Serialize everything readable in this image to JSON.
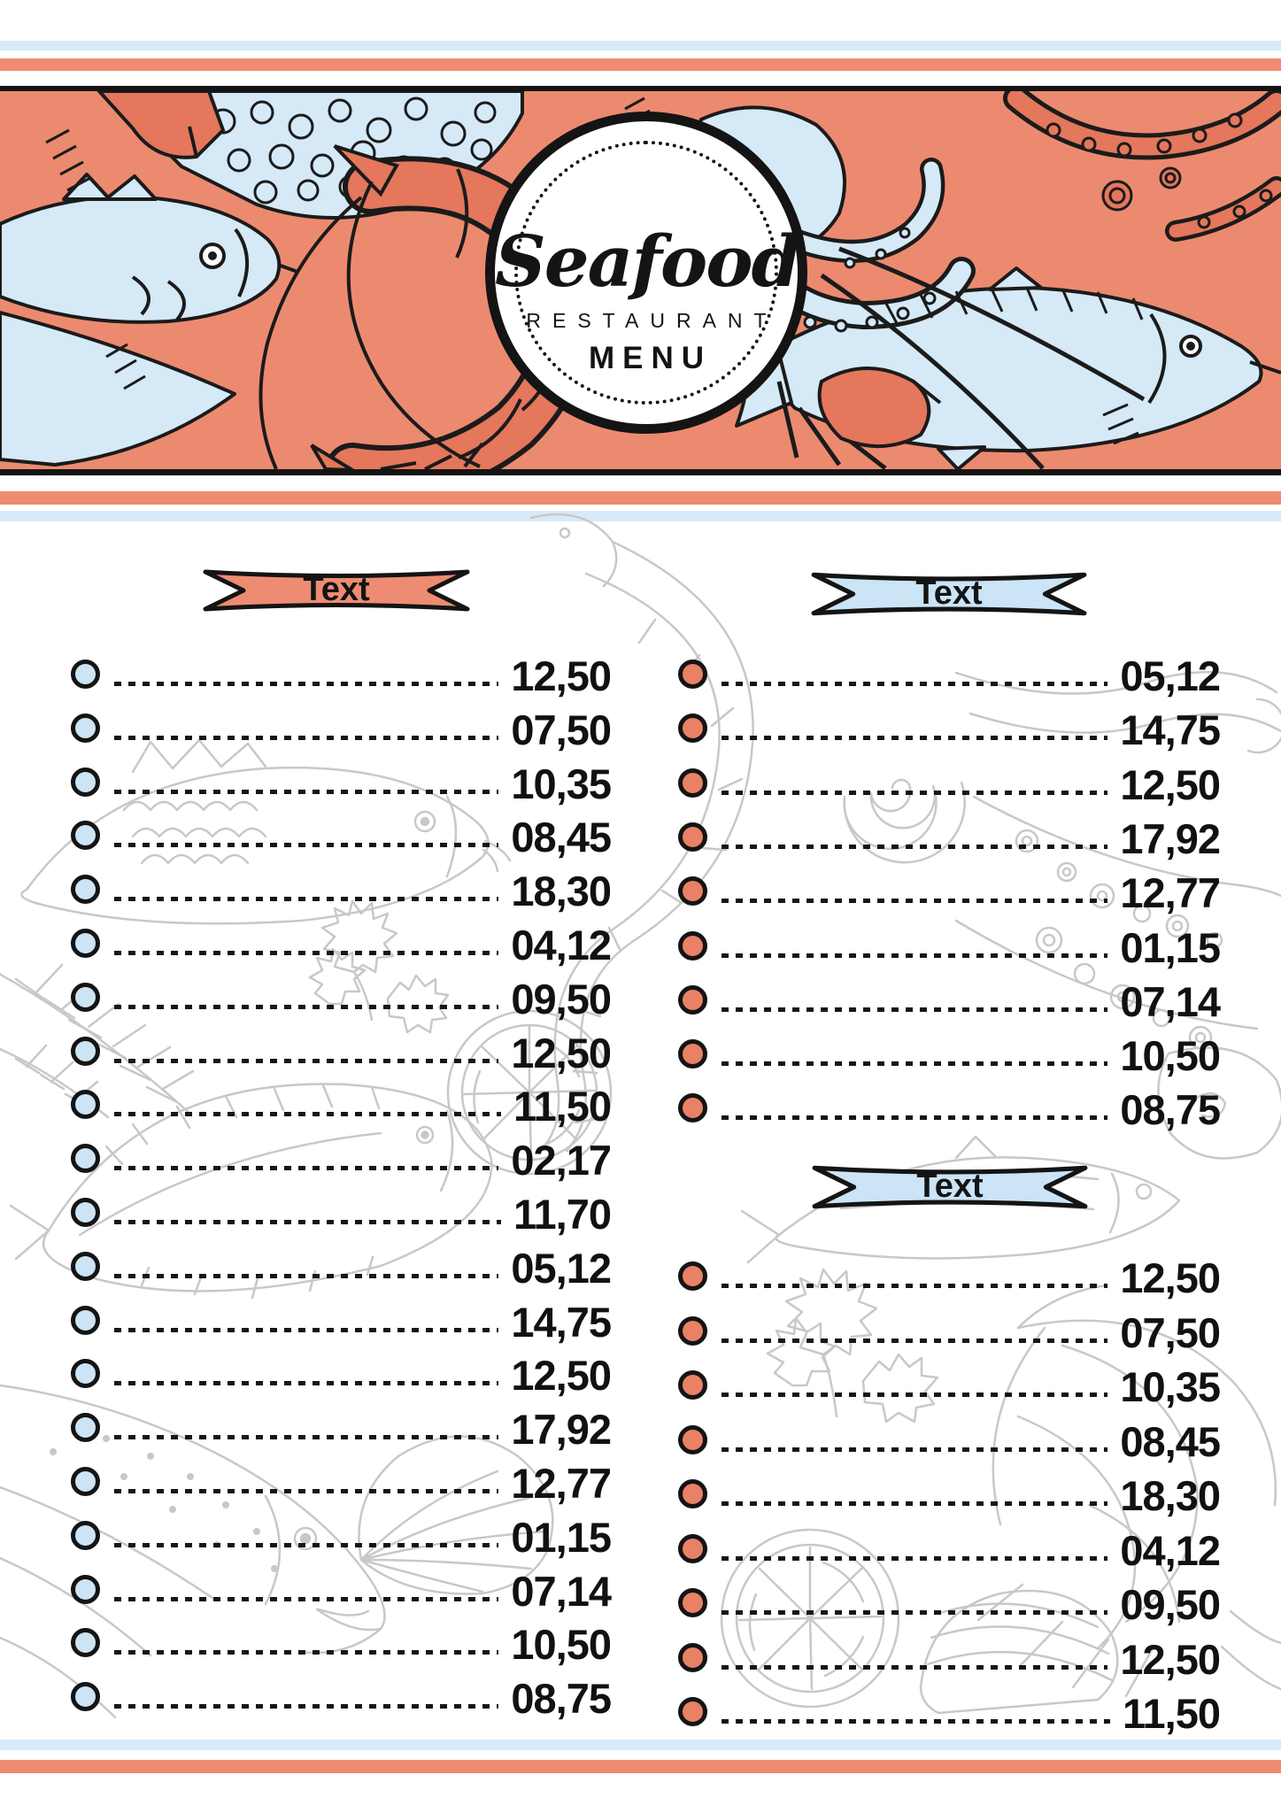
{
  "header": {
    "badge": {
      "title": "Seafood",
      "subtitle": "RESTAURANT",
      "label": "MENU"
    }
  },
  "colors": {
    "coral_stripe": "#EE8B71",
    "blue_stripe": "#D7EAF9",
    "band_background": "#EC8A70",
    "band_blue": "#D5E9F7",
    "band_coral_dark": "#E4775C",
    "ribbon_coral": "#ED8C72",
    "ribbon_blue": "#CBE4F6",
    "bullet_blue": "#CDE4F4",
    "bullet_coral": "#E98166",
    "outline_black": "#141414",
    "background_art_gray": "#c8c8c8"
  },
  "sections": [
    {
      "id": "left",
      "ribbon_label": "Text",
      "ribbon_color": "coral",
      "bullet_color": "blue",
      "items": [
        {
          "price": "12,50"
        },
        {
          "price": "07,50"
        },
        {
          "price": "10,35"
        },
        {
          "price": "08,45"
        },
        {
          "price": "18,30"
        },
        {
          "price": "04,12"
        },
        {
          "price": "09,50"
        },
        {
          "price": "12,50"
        },
        {
          "price": "11,50"
        },
        {
          "price": "02,17"
        },
        {
          "price": "11,70"
        },
        {
          "price": "05,12"
        },
        {
          "price": "14,75"
        },
        {
          "price": "12,50"
        },
        {
          "price": "17,92"
        },
        {
          "price": "12,77"
        },
        {
          "price": "01,15"
        },
        {
          "price": "07,14"
        },
        {
          "price": "10,50"
        },
        {
          "price": "08,75"
        }
      ]
    },
    {
      "id": "right-top",
      "ribbon_label": "Text",
      "ribbon_color": "blue",
      "bullet_color": "coral",
      "items": [
        {
          "price": "05,12"
        },
        {
          "price": "14,75"
        },
        {
          "price": "12,50"
        },
        {
          "price": "17,92"
        },
        {
          "price": "12,77"
        },
        {
          "price": "01,15"
        },
        {
          "price": "07,14"
        },
        {
          "price": "10,50"
        },
        {
          "price": "08,75"
        }
      ]
    },
    {
      "id": "right-bottom",
      "ribbon_label": "Text",
      "ribbon_color": "blue",
      "bullet_color": "coral",
      "items": [
        {
          "price": "12,50"
        },
        {
          "price": "07,50"
        },
        {
          "price": "10,35"
        },
        {
          "price": "08,45"
        },
        {
          "price": "18,30"
        },
        {
          "price": "04,12"
        },
        {
          "price": "09,50"
        },
        {
          "price": "12,50"
        },
        {
          "price": "11,50"
        }
      ]
    }
  ]
}
